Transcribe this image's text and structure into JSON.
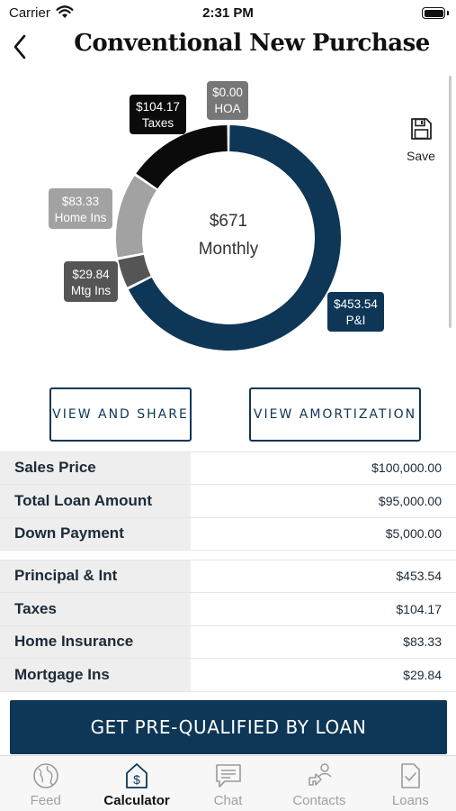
{
  "status": {
    "carrier": "Carrier",
    "time": "2:31 PM"
  },
  "header": {
    "title": "Conventional New Purchase"
  },
  "chart_data": {
    "type": "pie",
    "center": {
      "amount": "$671",
      "caption": "Monthly"
    },
    "slices": [
      {
        "name": "P&I",
        "value": 453.54,
        "amount": "$453.54",
        "label": "P&I",
        "color": "#0e3656"
      },
      {
        "name": "Mtg Ins",
        "value": 29.84,
        "amount": "$29.84",
        "label": "Mtg Ins",
        "color": "#555555"
      },
      {
        "name": "Home Ins",
        "value": 83.33,
        "amount": "$83.33",
        "label": "Home Ins",
        "color": "#a2a2a2"
      },
      {
        "name": "Taxes",
        "value": 104.17,
        "amount": "$104.17",
        "label": "Taxes",
        "color": "#0b0b0b"
      },
      {
        "name": "HOA",
        "value": 0.0,
        "amount": "$0.00",
        "label": "HOA",
        "color": "#777777"
      }
    ]
  },
  "save": {
    "label": "Save"
  },
  "actions": {
    "share_label": "VIEW AND SHARE",
    "amort_label": "VIEW AMORTIZATION"
  },
  "loan_summary": [
    {
      "label": "Sales Price",
      "value": "$100,000.00"
    },
    {
      "label": "Total Loan Amount",
      "value": "$95,000.00"
    },
    {
      "label": "Down Payment",
      "value": "$5,000.00"
    }
  ],
  "payment_breakdown": [
    {
      "label": "Principal & Int",
      "value": "$453.54"
    },
    {
      "label": "Taxes",
      "value": "$104.17"
    },
    {
      "label": "Home Insurance",
      "value": "$83.33"
    },
    {
      "label": "Mortgage Ins",
      "value": "$29.84"
    }
  ],
  "cta": {
    "label": "GET PRE-QUALIFIED BY LOAN"
  },
  "tabs": [
    {
      "label": "Feed",
      "icon": "globe-icon",
      "active": false
    },
    {
      "label": "Calculator",
      "icon": "calculator-dollar-icon",
      "active": true
    },
    {
      "label": "Chat",
      "icon": "chat-icon",
      "active": false
    },
    {
      "label": "Contacts",
      "icon": "contacts-icon",
      "active": false
    },
    {
      "label": "Loans",
      "icon": "loans-document-icon",
      "active": false
    }
  ]
}
